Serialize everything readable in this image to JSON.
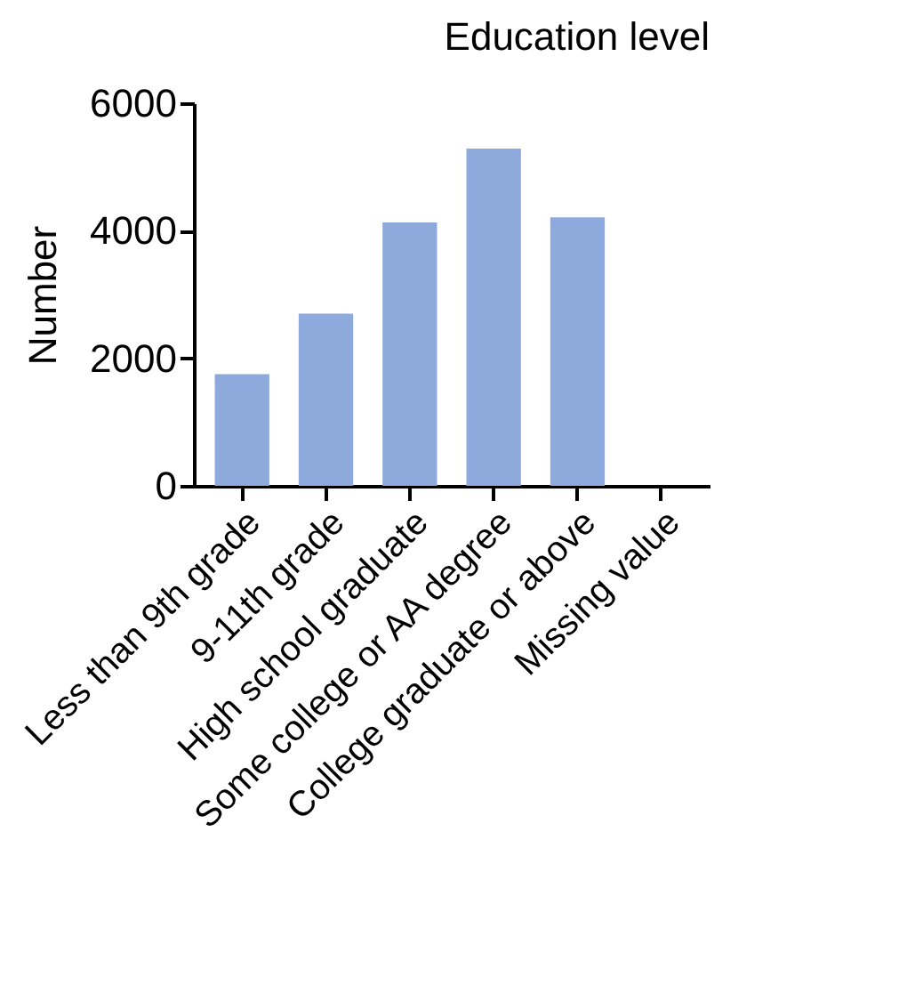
{
  "chart_data": {
    "type": "bar",
    "title": "Education level",
    "ylabel": "Number",
    "categories": [
      "Less than 9th grade",
      "9-11th grade",
      "High school graduate",
      "Some college or AA degree",
      "College graduate or above",
      "Missing value"
    ],
    "values": [
      1750,
      2700,
      4130,
      5290,
      4210,
      0
    ],
    "color": "#8eaadc",
    "ylim": [
      0,
      6000
    ],
    "yticks": [
      0,
      2000,
      4000,
      6000
    ],
    "grid": false
  }
}
